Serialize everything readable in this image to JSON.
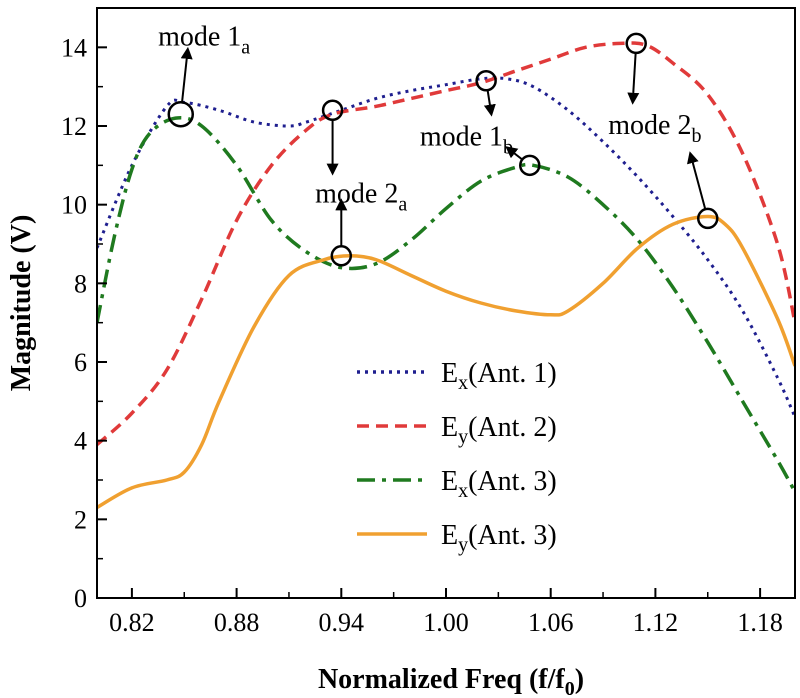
{
  "chart_data": {
    "type": "line",
    "title": "",
    "xlabel": "Normalized Freq (f/f",
    "xlabel_sub": "0",
    "xlabel_suffix": ")",
    "ylabel": "Magnitude (V)",
    "xlim": [
      0.8,
      1.2
    ],
    "ylim": [
      0,
      15
    ],
    "xticks": [
      0.82,
      0.88,
      0.94,
      1.0,
      1.06,
      1.12,
      1.18
    ],
    "xtick_labels": [
      "0.82",
      "0.88",
      "0.94",
      "1.00",
      "1.06",
      "1.12",
      "1.18"
    ],
    "yticks": [
      0,
      2,
      4,
      6,
      8,
      10,
      12,
      14
    ],
    "ytick_labels": [
      "0",
      "2",
      "4",
      "6",
      "8",
      "10",
      "12",
      "14"
    ],
    "legend_position": "bottom-center",
    "series": [
      {
        "name": "Ex(Ant. 1)",
        "base": "E",
        "sub": "x",
        "suffix": "(Ant. 1)",
        "color": "#1f1f8f",
        "dash": "dotted",
        "x": [
          0.8,
          0.82,
          0.84,
          0.85,
          0.87,
          0.89,
          0.91,
          0.92,
          0.94,
          0.96,
          0.98,
          1.0,
          1.02,
          1.035,
          1.05,
          1.07,
          1.09,
          1.11,
          1.13,
          1.15,
          1.17,
          1.19,
          1.2
        ],
        "values": [
          8.9,
          11.0,
          12.5,
          12.6,
          12.4,
          12.1,
          12.0,
          12.1,
          12.4,
          12.7,
          12.9,
          13.05,
          13.2,
          13.2,
          13.0,
          12.4,
          11.6,
          10.7,
          9.7,
          8.6,
          7.3,
          5.6,
          4.6
        ]
      },
      {
        "name": "Ey(Ant. 2)",
        "base": "E",
        "sub": "y",
        "suffix": "(Ant. 2)",
        "color": "#e03a3a",
        "dash": "dashed",
        "x": [
          0.8,
          0.82,
          0.84,
          0.86,
          0.88,
          0.9,
          0.92,
          0.935,
          0.96,
          0.98,
          1.0,
          1.02,
          1.04,
          1.06,
          1.08,
          1.1,
          1.115,
          1.13,
          1.15,
          1.17,
          1.19,
          1.2
        ],
        "values": [
          3.9,
          4.7,
          5.8,
          7.6,
          9.6,
          11.0,
          11.9,
          12.3,
          12.5,
          12.7,
          12.9,
          13.1,
          13.4,
          13.7,
          14.0,
          14.1,
          14.05,
          13.6,
          12.8,
          11.3,
          9.0,
          7.0
        ]
      },
      {
        "name": "Ex(Ant. 3)",
        "base": "E",
        "sub": "x",
        "suffix": "(Ant. 3)",
        "color": "#1f7a1f",
        "dash": "dashdot",
        "x": [
          0.8,
          0.81,
          0.82,
          0.83,
          0.845,
          0.86,
          0.88,
          0.9,
          0.92,
          0.94,
          0.96,
          0.98,
          1.0,
          1.02,
          1.04,
          1.05,
          1.07,
          1.09,
          1.11,
          1.13,
          1.15,
          1.17,
          1.19,
          1.2
        ],
        "values": [
          7.0,
          9.2,
          10.9,
          11.8,
          12.2,
          12.0,
          11.0,
          9.6,
          8.8,
          8.4,
          8.5,
          9.1,
          9.9,
          10.6,
          10.95,
          11.0,
          10.7,
          10.0,
          9.1,
          7.9,
          6.5,
          5.0,
          3.5,
          2.7
        ]
      },
      {
        "name": "Ey(Ant. 3)",
        "base": "E",
        "sub": "y",
        "suffix": "(Ant. 3)",
        "color": "#f0a030",
        "dash": "solid",
        "x": [
          0.8,
          0.82,
          0.84,
          0.85,
          0.86,
          0.87,
          0.89,
          0.91,
          0.93,
          0.945,
          0.96,
          0.98,
          1.0,
          1.02,
          1.04,
          1.06,
          1.07,
          1.09,
          1.11,
          1.13,
          1.15,
          1.16,
          1.17,
          1.19,
          1.2
        ],
        "values": [
          2.3,
          2.8,
          3.0,
          3.2,
          3.9,
          5.0,
          6.9,
          8.2,
          8.6,
          8.7,
          8.6,
          8.2,
          7.8,
          7.5,
          7.3,
          7.2,
          7.3,
          8.0,
          8.9,
          9.5,
          9.7,
          9.5,
          8.9,
          7.1,
          5.9
        ]
      }
    ],
    "annotations": [
      {
        "base": "mode 1",
        "sub": "a",
        "marker": [
          0.848,
          12.3
        ],
        "arrow_to": [
          0.852,
          13.95
        ],
        "label_pos": [
          0.835,
          14.05
        ]
      },
      {
        "base": "mode 2",
        "sub": "a",
        "marker": [
          0.935,
          12.4
        ],
        "arrow_to": [
          0.935,
          10.8
        ],
        "label_pos": [
          0.925,
          10.05
        ]
      },
      {
        "base": "mode 2",
        "sub": "a",
        "marker": [
          0.94,
          8.7
        ],
        "arrow_to": [
          0.94,
          10.1
        ],
        "label_pos": null
      },
      {
        "base": "mode 1",
        "sub": "b",
        "marker": [
          1.023,
          13.15
        ],
        "arrow_to": [
          1.026,
          12.3
        ],
        "label_pos": [
          0.985,
          11.5
        ]
      },
      {
        "base": "mode 1",
        "sub": "b",
        "marker": [
          1.048,
          11.0
        ],
        "arrow_to": [
          1.035,
          11.45
        ],
        "label_pos": null
      },
      {
        "base": "mode 2",
        "sub": "b",
        "marker": [
          1.109,
          14.1
        ],
        "arrow_to": [
          1.107,
          12.6
        ],
        "label_pos": [
          1.093,
          11.8
        ]
      },
      {
        "base": "mode 2",
        "sub": "b",
        "marker": [
          1.15,
          9.65
        ],
        "arrow_to": [
          1.14,
          11.3
        ],
        "label_pos": null
      }
    ]
  }
}
